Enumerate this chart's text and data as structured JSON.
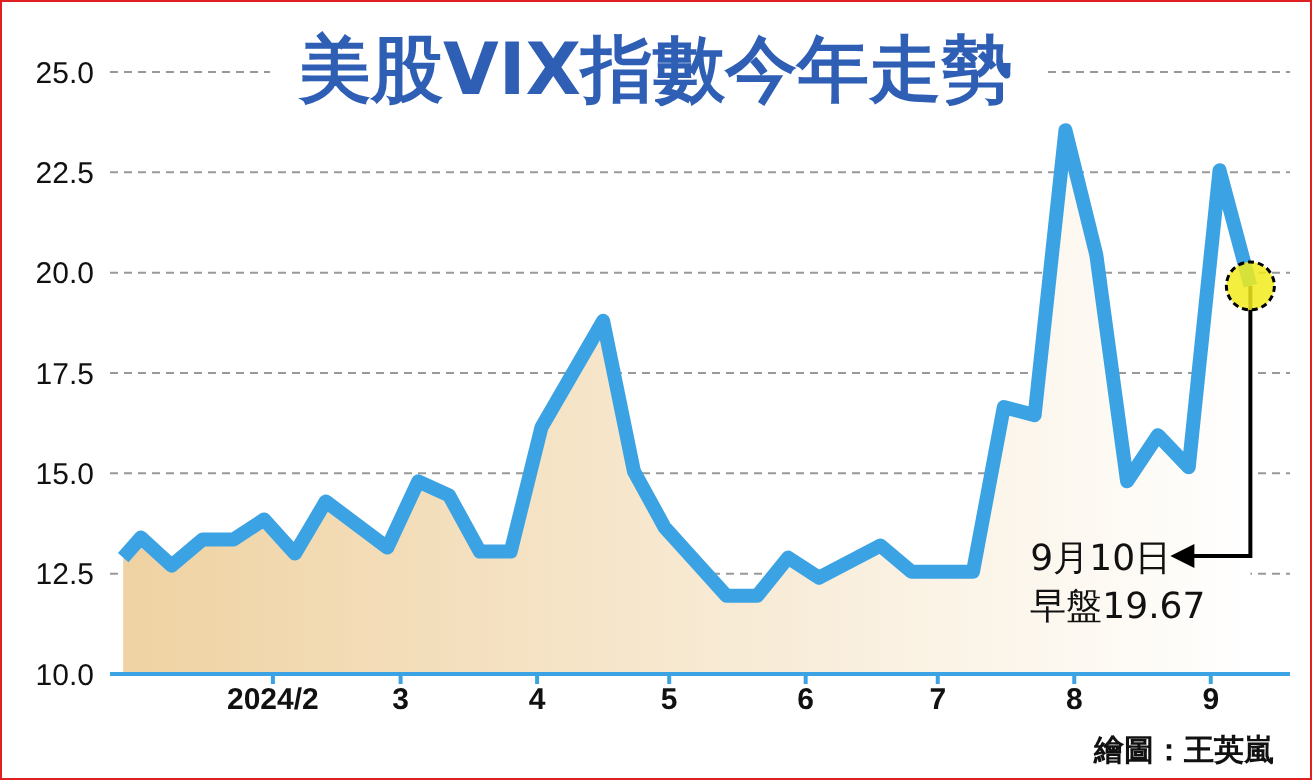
{
  "chart_data": {
    "type": "area",
    "title": "美股VIX指數今年走勢",
    "x": [
      "2023-12-29",
      "2024-01-02",
      "2024-01-09",
      "2024-01-16",
      "2024-01-23",
      "2024-01-30",
      "2024-02-06",
      "2024-02-13",
      "2024-02-27",
      "2024-03-05",
      "2024-03-12",
      "2024-03-19",
      "2024-03-26",
      "2024-04-02",
      "2024-04-16",
      "2024-04-23",
      "2024-04-30",
      "2024-05-07",
      "2024-05-14",
      "2024-05-21",
      "2024-05-28",
      "2024-06-04",
      "2024-06-18",
      "2024-06-25",
      "2024-07-09",
      "2024-07-16",
      "2024-07-23",
      "2024-07-30",
      "2024-08-06",
      "2024-08-13",
      "2024-08-20",
      "2024-08-27",
      "2024-09-03",
      "2024-09-10"
    ],
    "series": [
      {
        "color": "#3ba3e3",
        "values": [
          12.9,
          13.4,
          12.7,
          13.35,
          13.35,
          13.85,
          13.0,
          14.3,
          13.15,
          14.8,
          14.45,
          13.05,
          13.05,
          16.15,
          18.8,
          15.05,
          13.65,
          12.8,
          11.95,
          11.95,
          12.9,
          12.4,
          13.2,
          12.55,
          12.55,
          16.65,
          16.45,
          23.55,
          20.45,
          14.8,
          15.95,
          15.15,
          22.55,
          19.67
        ]
      }
    ],
    "xlim": [
      "2023-12-26",
      "2024-09-19"
    ],
    "xticks": [
      {
        "value": "2024-02-01",
        "label": "2024/2"
      },
      {
        "value": "2024-03-01",
        "label": "3"
      },
      {
        "value": "2024-04-01",
        "label": "4"
      },
      {
        "value": "2024-05-01",
        "label": "5"
      },
      {
        "value": "2024-06-01",
        "label": "6"
      },
      {
        "value": "2024-07-01",
        "label": "7"
      },
      {
        "value": "2024-08-01",
        "label": "8"
      },
      {
        "value": "2024-09-01",
        "label": "9"
      }
    ],
    "ylim": [
      10,
      25
    ],
    "yticks": [
      {
        "value": 10,
        "label": "10.0"
      },
      {
        "value": 12.5,
        "label": "12.5"
      },
      {
        "value": 15,
        "label": "15.0"
      },
      {
        "value": 17.5,
        "label": "17.5"
      },
      {
        "value": 20,
        "label": "20.0"
      },
      {
        "value": 22.5,
        "label": "22.5"
      },
      {
        "value": 25,
        "label": "25.0"
      }
    ],
    "grid": "y",
    "legend": false,
    "marker": "none",
    "line_style": "solid",
    "annotations": [
      {
        "text": "9月10日",
        "x": "2024-09-10",
        "y": 19.67
      },
      {
        "text": "早盤19.67",
        "x": "2024-09-10",
        "y": 19.67
      },
      "繪圖：王英嵐"
    ]
  }
}
